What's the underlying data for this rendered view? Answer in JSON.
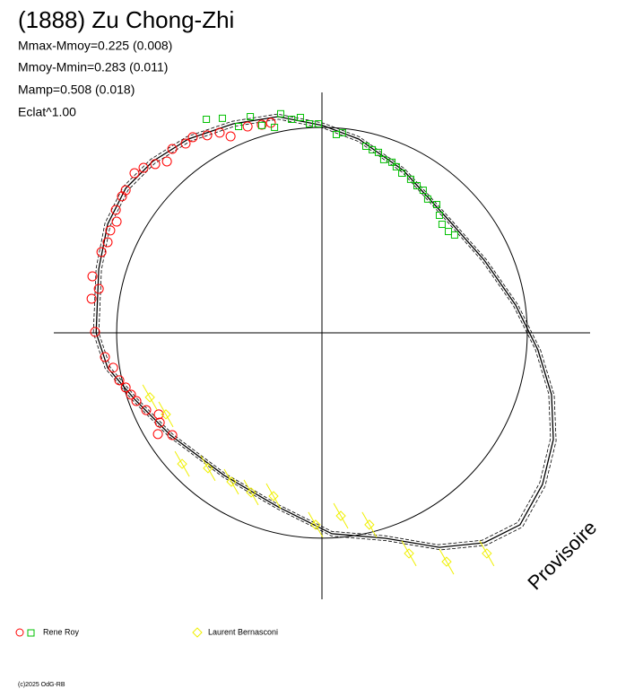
{
  "chart_data": {
    "type": "polar-lightcurve",
    "title": "(1888) Zu Chong-Zhi",
    "annotations": [
      "Mmax-Mmoy=0.225 (0.008)",
      "Mmoy-Mmin=0.283 (0.011)",
      "Mamp=0.508 (0.018)",
      "Eclat^1.00"
    ],
    "watermark": "Provisoire",
    "copyright": "(c)2025 OdG-RB",
    "xlim": [
      -1.306,
      1.306
    ],
    "ylim": [
      -1.297,
      1.17
    ],
    "circle_radius": 1,
    "model": {
      "color": "#000000",
      "x": [
        -1.1,
        -1.087,
        -1.044,
        -0.956,
        -0.825,
        -0.651,
        -0.432,
        -0.214,
        0.004,
        0.179,
        0.397,
        0.616,
        0.79,
        0.943,
        1.052,
        1.118,
        1.127,
        1.074,
        0.965,
        0.79,
        0.572,
        0.31,
        0.048,
        -0.214,
        -0.476,
        -0.738,
        -0.913,
        -1.044
      ],
      "y": [
        0,
        0.31,
        0.528,
        0.703,
        0.834,
        0.943,
        1.017,
        1.052,
        1.009,
        0.943,
        0.79,
        0.55,
        0.354,
        0.135,
        -0.083,
        -0.301,
        -0.52,
        -0.738,
        -0.934,
        -1.022,
        -1.044,
        -1.0,
        -0.978,
        -0.847,
        -0.694,
        -0.498,
        -0.323,
        -0.17
      ]
    },
    "series": [
      {
        "name": "Rene Roy",
        "color": "#ff0000",
        "marker": "circle",
        "x": [
          -1.105,
          -1.122,
          -1.118,
          -1.087,
          -1.074,
          -1.044,
          -1.031,
          -1.0,
          -1.004,
          -0.974,
          -0.956,
          -0.913,
          -0.869,
          -0.812,
          -0.755,
          -0.729,
          -0.664,
          -0.629,
          -0.559,
          -0.498,
          -0.445,
          -0.362,
          -0.293,
          -0.249,
          -1.057,
          -1.017,
          -0.987,
          -0.956,
          -0.93,
          -0.904,
          -0.856,
          -0.795,
          -0.79,
          -0.799,
          -0.729
        ],
        "y": [
          0.004,
          0.166,
          0.275,
          0.214,
          0.393,
          0.441,
          0.498,
          0.541,
          0.598,
          0.664,
          0.694,
          0.777,
          0.803,
          0.821,
          0.834,
          0.895,
          0.921,
          0.952,
          0.961,
          0.974,
          0.956,
          1.004,
          1.013,
          1.022,
          -0.118,
          -0.17,
          -0.231,
          -0.266,
          -0.301,
          -0.332,
          -0.376,
          -0.397,
          -0.437,
          -0.493,
          -0.498
        ]
      },
      {
        "color": "#00c000",
        "marker": "square",
        "x": [
          -0.563,
          -0.485,
          -0.406,
          -0.349,
          -0.293,
          -0.231,
          -0.201,
          -0.148,
          -0.105,
          -0.061,
          -0.017,
          0.07,
          0.1,
          0.214,
          0.245,
          0.275,
          0.301,
          0.341,
          0.362,
          0.389,
          0.432,
          0.463,
          0.493,
          0.515,
          0.559,
          0.572,
          0.585,
          0.616,
          0.646
        ],
        "y": [
          1.039,
          1.044,
          1.004,
          1.052,
          1.009,
          1.0,
          1.066,
          1.039,
          1.048,
          1.017,
          1.017,
          0.965,
          0.974,
          0.908,
          0.891,
          0.878,
          0.843,
          0.83,
          0.808,
          0.777,
          0.747,
          0.716,
          0.694,
          0.651,
          0.624,
          0.572,
          0.528,
          0.493,
          0.476
        ]
      },
      {
        "name": "Laurent Bernasconi",
        "color": "#f0f000",
        "marker": "diamond",
        "x": [
          -0.838,
          -0.76,
          -0.681,
          -0.555,
          -0.441,
          -0.345,
          -0.236,
          -0.031,
          0.092,
          0.231,
          0.424,
          0.607,
          0.803
        ],
        "y": [
          -0.314,
          -0.397,
          -0.638,
          -0.659,
          -0.725,
          -0.777,
          -0.795,
          -0.934,
          -0.891,
          -0.934,
          -1.074,
          -1.114,
          -1.074
        ]
      }
    ]
  }
}
